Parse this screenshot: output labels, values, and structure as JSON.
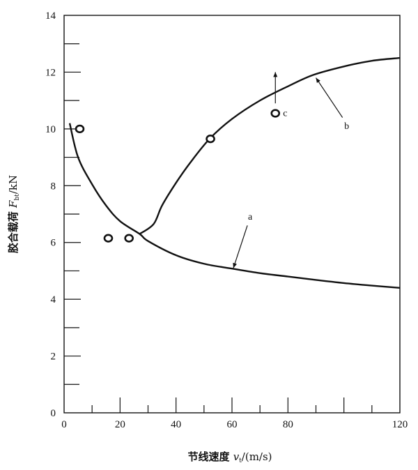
{
  "chart_data": {
    "type": "line",
    "title": "",
    "xlabel": "节线速度 v_t/(m/s)",
    "xlabel_parts": {
      "main": "节线速度 ",
      "var": "v",
      "sub": "t",
      "unit": "/(m/s)"
    },
    "ylabel": "胶合载荷 F_bt/kN",
    "ylabel_parts": {
      "main": "胶合载荷 ",
      "var": "F",
      "sub": "bt",
      "unit": "/kN"
    },
    "xlim": [
      0,
      120
    ],
    "ylim": [
      0,
      14
    ],
    "x_tick_labels": [
      "0",
      "20",
      "40",
      "60",
      "80",
      "120"
    ],
    "x_tick_label_values": [
      0,
      20,
      40,
      60,
      80,
      120
    ],
    "x_minor_ticks": [
      10,
      20,
      30,
      40,
      50,
      60,
      70,
      80,
      90,
      100,
      110
    ],
    "y_tick_labels": [
      "0",
      "2",
      "4",
      "6",
      "8",
      "10",
      "12",
      "14"
    ],
    "y_tick_label_values": [
      0,
      2,
      4,
      6,
      8,
      10,
      12,
      14
    ],
    "y_minor_ticks": [
      1,
      2,
      3,
      4,
      5,
      6,
      7,
      8,
      9,
      10,
      11,
      12,
      13
    ],
    "grid": false,
    "series": [
      {
        "label": "a",
        "x": [
          2,
          5,
          10,
          15,
          20,
          27,
          30,
          40,
          50,
          60,
          70,
          80,
          90,
          100,
          110,
          120
        ],
        "y": [
          10.2,
          9.0,
          8.05,
          7.3,
          6.75,
          6.3,
          6.05,
          5.55,
          5.25,
          5.08,
          4.92,
          4.8,
          4.68,
          4.57,
          4.48,
          4.4
        ]
      },
      {
        "label": "b",
        "x": [
          27,
          32,
          35,
          40,
          45,
          52,
          60,
          70,
          80,
          89,
          100,
          110,
          120
        ],
        "y": [
          6.3,
          6.65,
          7.3,
          8.1,
          8.8,
          9.65,
          10.35,
          11.0,
          11.5,
          11.9,
          12.2,
          12.4,
          12.5
        ]
      }
    ],
    "points": {
      "x": [
        5.6,
        15.8,
        23.2,
        52.3,
        75.5
      ],
      "y": [
        10.0,
        6.15,
        6.15,
        9.65,
        10.55
      ]
    },
    "annotations": [
      {
        "text": "a",
        "at": [
          66.5,
          6.9
        ],
        "arrow_from": [
          65.5,
          6.6
        ],
        "arrow_to": [
          60.5,
          5.1
        ]
      },
      {
        "text": "b",
        "at": [
          101,
          10.1
        ],
        "arrow_from": [
          99.5,
          10.4
        ],
        "arrow_to": [
          90,
          11.8
        ]
      },
      {
        "text": "c",
        "at": [
          79,
          10.55
        ],
        "arrow_from": [
          75.5,
          10.9
        ],
        "arrow_to": [
          75.5,
          12.0
        ]
      }
    ],
    "colors": {
      "ink": "#111111"
    }
  }
}
